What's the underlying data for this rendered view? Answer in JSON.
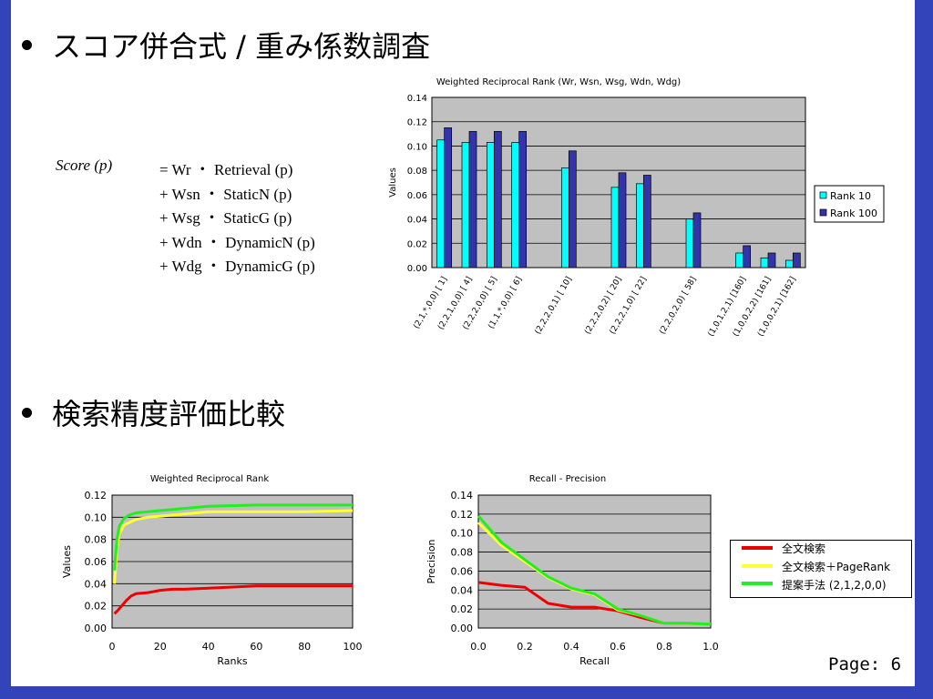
{
  "slide": {
    "bullet1": "スコア併合式 / 重み係数調査",
    "bullet2": "検索精度評価比較",
    "page_label": "Page: 6",
    "frame_color": "#3344bb"
  },
  "formula": {
    "lhs": "Score (p)",
    "lines": [
      "= Wr ・ Retrieval (p)",
      "+ Wsn ・ StaticN (p)",
      "+ Wsg ・ StaticG (p)",
      "+ Wdn ・ DynamicN (p)",
      "+ Wdg ・ DynamicG (p)"
    ]
  },
  "chart_data": [
    {
      "type": "bar",
      "title": "Weighted Reciprocal Rank (Wr, Wsn, Wsg, Wdn, Wdg)",
      "ylabel": "Values",
      "xlabel": "",
      "ylim": [
        0,
        0.14
      ],
      "yticks": [
        "0.00",
        "0.02",
        "0.04",
        "0.06",
        "0.08",
        "0.10",
        "0.12",
        "0.14"
      ],
      "categories": [
        "(2,1,*,0,0) [ 1]",
        "(2,2,1,0,0) [ 4]",
        "(2,2,2,0,0) [ 5]",
        "(1,1,*,0,0) [ 6]",
        "",
        "(2,2,2,0,1) [ 10]",
        "",
        "(2,2,2,0,2) [ 20]",
        "(2,2,2,1,0) [ 22]",
        "",
        "(2,2,0,2,0) [ 58]",
        "",
        "(1,0,1,2,1) [160]",
        "(1,0,0,2,2) [161]",
        "(1,0,0,2,1) [162]"
      ],
      "series": [
        {
          "name": "Rank 10",
          "color": "#00ffff",
          "values": [
            0.105,
            0.103,
            0.103,
            0.103,
            null,
            0.082,
            null,
            0.066,
            0.069,
            null,
            0.04,
            null,
            0.012,
            0.008,
            0.006
          ]
        },
        {
          "name": "Rank 100",
          "color": "#3333aa",
          "values": [
            0.115,
            0.112,
            0.112,
            0.112,
            null,
            0.096,
            null,
            0.078,
            0.076,
            null,
            0.045,
            null,
            0.018,
            0.012,
            0.012
          ]
        }
      ],
      "legend_position": "right",
      "grid": true
    },
    {
      "type": "line",
      "title": "Weighted Reciprocal Rank",
      "xlabel": "Ranks",
      "ylabel": "Values",
      "xlim": [
        0,
        100
      ],
      "ylim": [
        0,
        0.12
      ],
      "xticks": [
        "0",
        "20",
        "40",
        "60",
        "80",
        "100"
      ],
      "yticks": [
        "0.00",
        "0.02",
        "0.04",
        "0.06",
        "0.08",
        "0.10",
        "0.12"
      ],
      "series": [
        {
          "name": "全文検索",
          "color": "#ee0000",
          "points": [
            [
              1,
              0.013
            ],
            [
              2,
              0.015
            ],
            [
              4,
              0.02
            ],
            [
              6,
              0.025
            ],
            [
              8,
              0.029
            ],
            [
              10,
              0.031
            ],
            [
              15,
              0.032
            ],
            [
              20,
              0.034
            ],
            [
              25,
              0.035
            ],
            [
              30,
              0.035
            ],
            [
              40,
              0.036
            ],
            [
              50,
              0.037
            ],
            [
              60,
              0.038
            ],
            [
              70,
              0.038
            ],
            [
              80,
              0.038
            ],
            [
              90,
              0.038
            ],
            [
              100,
              0.038
            ]
          ]
        },
        {
          "name": "全文検索＋PageRank",
          "color": "#ffff33",
          "points": [
            [
              1,
              0.04
            ],
            [
              2,
              0.07
            ],
            [
              3,
              0.085
            ],
            [
              5,
              0.093
            ],
            [
              7,
              0.095
            ],
            [
              10,
              0.098
            ],
            [
              15,
              0.1
            ],
            [
              20,
              0.101
            ],
            [
              30,
              0.103
            ],
            [
              40,
              0.105
            ],
            [
              60,
              0.105
            ],
            [
              80,
              0.105
            ],
            [
              100,
              0.106
            ]
          ]
        },
        {
          "name": "提案手法 (2,1,2,0,0)",
          "color": "#22ee22",
          "points": [
            [
              1,
              0.052
            ],
            [
              2,
              0.08
            ],
            [
              3,
              0.092
            ],
            [
              5,
              0.099
            ],
            [
              7,
              0.102
            ],
            [
              10,
              0.104
            ],
            [
              15,
              0.105
            ],
            [
              20,
              0.106
            ],
            [
              30,
              0.108
            ],
            [
              40,
              0.11
            ],
            [
              60,
              0.111
            ],
            [
              80,
              0.111
            ],
            [
              100,
              0.111
            ]
          ]
        }
      ],
      "grid": true
    },
    {
      "type": "line",
      "title": "Recall - Precision",
      "xlabel": "Recall",
      "ylabel": "Precision",
      "xlim": [
        0,
        1.0
      ],
      "ylim": [
        0,
        0.14
      ],
      "xticks": [
        "0.0",
        "0.2",
        "0.4",
        "0.6",
        "0.8",
        "1.0"
      ],
      "yticks": [
        "0.00",
        "0.02",
        "0.04",
        "0.06",
        "0.08",
        "0.10",
        "0.12",
        "0.14"
      ],
      "series": [
        {
          "name": "全文検索",
          "color": "#ee0000",
          "points": [
            [
              0.0,
              0.048
            ],
            [
              0.1,
              0.045
            ],
            [
              0.2,
              0.043
            ],
            [
              0.3,
              0.026
            ],
            [
              0.4,
              0.022
            ],
            [
              0.5,
              0.022
            ],
            [
              0.6,
              0.018
            ],
            [
              0.7,
              0.011
            ],
            [
              0.8,
              0.005
            ],
            [
              0.9,
              0.005
            ],
            [
              1.0,
              0.004
            ]
          ]
        },
        {
          "name": "全文検索＋PageRank",
          "color": "#ffff33",
          "points": [
            [
              0.0,
              0.111
            ],
            [
              0.1,
              0.087
            ],
            [
              0.2,
              0.07
            ],
            [
              0.3,
              0.053
            ],
            [
              0.4,
              0.041
            ],
            [
              0.5,
              0.035
            ],
            [
              0.6,
              0.019
            ],
            [
              0.7,
              0.013
            ],
            [
              0.8,
              0.005
            ],
            [
              0.9,
              0.005
            ],
            [
              1.0,
              0.004
            ]
          ]
        },
        {
          "name": "提案手法 (2,1,2,0,0)",
          "color": "#22ee22",
          "points": [
            [
              0.0,
              0.118
            ],
            [
              0.1,
              0.09
            ],
            [
              0.2,
              0.072
            ],
            [
              0.3,
              0.054
            ],
            [
              0.4,
              0.042
            ],
            [
              0.5,
              0.036
            ],
            [
              0.6,
              0.02
            ],
            [
              0.7,
              0.013
            ],
            [
              0.8,
              0.005
            ],
            [
              0.9,
              0.005
            ],
            [
              1.0,
              0.004
            ]
          ]
        }
      ],
      "legend_position": "right",
      "grid": true
    }
  ]
}
